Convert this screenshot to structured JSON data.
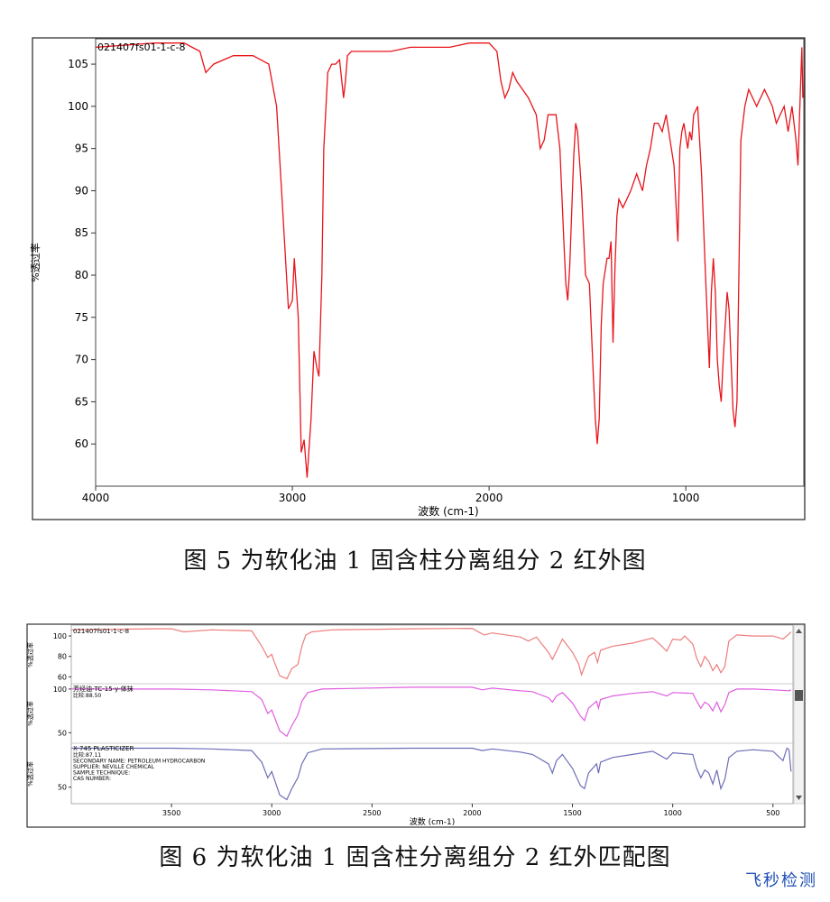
{
  "captions": {
    "fig5": "图 5 为软化油 1 固含柱分离组分  2  红外图",
    "fig6": "图 6 为软化油 1 固含柱分离组分 2 红外匹配图"
  },
  "watermark": "飞秒检测",
  "colors": {
    "sample": "#e8141b",
    "sample_light": "#ee7d7d",
    "match1": "#e05de0",
    "match2": "#6d6db8"
  },
  "chart_data": [
    {
      "type": "line",
      "title": "021407fs01-1-c-8",
      "xlabel": "波数 (cm-1)",
      "ylabel": "%透过率",
      "xlim": [
        4000,
        400
      ],
      "ylim": [
        55,
        108
      ],
      "x_ticks": [
        4000,
        3000,
        2000,
        1000
      ],
      "y_ticks": [
        60,
        65,
        70,
        75,
        80,
        85,
        90,
        95,
        100,
        105
      ],
      "series": [
        {
          "name": "021407fs01-1-c-8",
          "x": [
            4000,
            3700,
            3550,
            3470,
            3440,
            3400,
            3300,
            3200,
            3120,
            3080,
            3050,
            3020,
            3000,
            2990,
            2970,
            2955,
            2940,
            2925,
            2905,
            2890,
            2875,
            2865,
            2850,
            2840,
            2820,
            2800,
            2780,
            2760,
            2740,
            2730,
            2720,
            2700,
            2600,
            2500,
            2400,
            2300,
            2200,
            2100,
            2000,
            1960,
            1940,
            1920,
            1900,
            1880,
            1860,
            1800,
            1760,
            1740,
            1720,
            1700,
            1680,
            1660,
            1640,
            1620,
            1610,
            1600,
            1590,
            1570,
            1560,
            1550,
            1530,
            1510,
            1490,
            1470,
            1460,
            1450,
            1440,
            1430,
            1420,
            1400,
            1390,
            1380,
            1370,
            1360,
            1350,
            1340,
            1320,
            1300,
            1280,
            1250,
            1220,
            1200,
            1180,
            1160,
            1140,
            1120,
            1100,
            1080,
            1060,
            1040,
            1030,
            1020,
            1010,
            990,
            980,
            970,
            960,
            940,
            920,
            900,
            880,
            870,
            860,
            850,
            840,
            830,
            820,
            810,
            800,
            790,
            780,
            770,
            760,
            750,
            740,
            730,
            720,
            700,
            680,
            660,
            640,
            620,
            600,
            580,
            560,
            540,
            520,
            500,
            480,
            460,
            440,
            430,
            420,
            410,
            405
          ],
          "y": [
            107,
            107.5,
            107.5,
            106.5,
            104,
            105,
            106,
            106,
            105,
            100,
            88,
            76,
            77,
            82,
            75,
            59,
            60.5,
            56,
            63,
            71,
            69,
            68,
            80,
            95,
            104,
            105,
            105,
            105.5,
            101,
            103,
            106,
            106.5,
            106.5,
            106.5,
            107,
            107,
            107,
            107.5,
            107.5,
            106.5,
            103,
            101,
            102,
            104,
            103,
            101,
            99,
            95,
            96,
            99,
            99,
            99,
            95,
            84,
            79,
            77,
            81,
            94,
            98,
            97,
            90,
            80,
            79,
            68,
            63,
            60,
            63,
            74,
            79,
            82,
            82,
            84,
            72,
            81,
            87,
            89,
            88,
            89,
            90,
            92,
            90,
            93,
            95,
            98,
            98,
            97,
            99,
            96,
            93,
            84,
            95,
            97,
            98,
            95,
            97,
            96,
            99,
            100,
            92,
            80,
            69,
            78,
            82,
            78,
            70,
            67,
            65,
            70,
            74,
            78,
            76,
            70,
            64,
            62,
            65,
            80,
            96,
            100,
            102,
            101,
            100,
            101,
            102,
            101,
            100,
            98,
            99,
            100,
            97,
            100,
            96,
            93,
            100,
            107,
            101
          ]
        }
      ]
    },
    {
      "type": "line",
      "xlabel": "波数 (cm-1)",
      "xlim": [
        4000,
        400
      ],
      "x_ticks": [
        3500,
        3000,
        2500,
        2000,
        1500,
        1000,
        500
      ],
      "panels": [
        {
          "label": "021407fs01-1-c-8",
          "info": [],
          "ylabel": "%透过率",
          "y_ticks": [
            60,
            80,
            100
          ],
          "color": "#ee7d7d",
          "x": [
            4000,
            3600,
            3500,
            3440,
            3300,
            3100,
            3050,
            3020,
            3000,
            2990,
            2960,
            2925,
            2900,
            2870,
            2850,
            2830,
            2800,
            2700,
            2300,
            2000,
            1960,
            1940,
            1900,
            1760,
            1720,
            1680,
            1620,
            1600,
            1580,
            1550,
            1500,
            1470,
            1455,
            1440,
            1420,
            1390,
            1375,
            1360,
            1300,
            1200,
            1100,
            1060,
            1030,
            1000,
            960,
            940,
            900,
            880,
            860,
            840,
            820,
            800,
            780,
            760,
            740,
            720,
            680,
            600,
            500,
            450,
            420,
            410
          ],
          "y": [
            106,
            107,
            107,
            104,
            106,
            105,
            90,
            79,
            82,
            76,
            61,
            58,
            68,
            72,
            90,
            101,
            104,
            106,
            107,
            107.5,
            103,
            101,
            103,
            99,
            95,
            99,
            84,
            77,
            85,
            97,
            84,
            73,
            62,
            70,
            80,
            84,
            74,
            86,
            90,
            93,
            98,
            91,
            85,
            97,
            96,
            100,
            92,
            78,
            70,
            80,
            75,
            66,
            72,
            64,
            70,
            95,
            101,
            100,
            100,
            97,
            102,
            104
          ]
        },
        {
          "label": "芳烃油-TC-15-y-体抹",
          "info": [
            "比较:88.50"
          ],
          "ylabel": "%透过率",
          "y_ticks": [
            50,
            100
          ],
          "color": "#e05de0",
          "x": [
            4000,
            3500,
            3300,
            3100,
            3050,
            3020,
            3000,
            2960,
            2925,
            2900,
            2870,
            2850,
            2820,
            2750,
            2300,
            2000,
            1950,
            1900,
            1760,
            1700,
            1620,
            1600,
            1580,
            1550,
            1500,
            1460,
            1440,
            1420,
            1380,
            1370,
            1360,
            1300,
            1200,
            1100,
            1030,
            1000,
            900,
            880,
            860,
            840,
            820,
            800,
            780,
            760,
            740,
            720,
            680,
            600,
            500,
            420,
            410
          ],
          "y": [
            100,
            100,
            99,
            97,
            88,
            72,
            76,
            52,
            46,
            58,
            70,
            86,
            96,
            100,
            102,
            102,
            99,
            101,
            98,
            97,
            90,
            85,
            92,
            96,
            84,
            69,
            64,
            78,
            86,
            78,
            88,
            92,
            95,
            97,
            92,
            96,
            95,
            86,
            78,
            85,
            82,
            75,
            85,
            74,
            82,
            96,
            100,
            100,
            99,
            98,
            99
          ]
        },
        {
          "label": "X-745 PLASTICIZER",
          "info": [
            "比较:87.11",
            "SECONDARY NAME:  PETROLEUM HYDROCARBON",
            "SUPPLIER:  NEVILLE CHEMICAL",
            "SAMPLE TECHNIQUE:",
            "CAS NUMBER:"
          ],
          "ylabel": "%透过率",
          "y_ticks": [
            50
          ],
          "color": "#6d6db8",
          "x": [
            4000,
            3500,
            3300,
            3100,
            3050,
            3020,
            3000,
            2960,
            2925,
            2900,
            2870,
            2850,
            2820,
            2750,
            2300,
            2000,
            1950,
            1900,
            1760,
            1700,
            1620,
            1600,
            1580,
            1550,
            1500,
            1460,
            1440,
            1420,
            1380,
            1370,
            1360,
            1300,
            1200,
            1100,
            1030,
            1000,
            900,
            880,
            860,
            840,
            820,
            800,
            780,
            760,
            740,
            720,
            680,
            600,
            500,
            450,
            430,
            420,
            410
          ],
          "y": [
            100,
            100,
            99,
            97,
            82,
            62,
            70,
            40,
            34,
            48,
            62,
            80,
            94,
            99,
            100,
            100,
            97,
            99,
            95,
            92,
            80,
            68,
            84,
            92,
            74,
            52,
            48,
            68,
            80,
            68,
            82,
            88,
            92,
            96,
            86,
            94,
            92,
            74,
            62,
            72,
            68,
            54,
            72,
            48,
            60,
            88,
            96,
            98,
            96,
            84,
            100,
            98,
            70
          ]
        }
      ]
    }
  ]
}
